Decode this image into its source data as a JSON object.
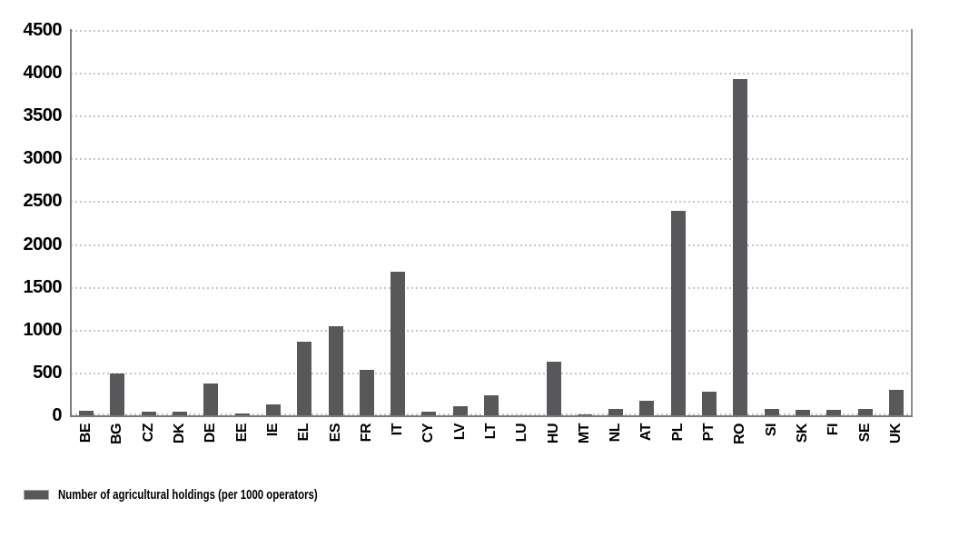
{
  "chart_data": {
    "type": "bar",
    "title": "",
    "categories": [
      "BE",
      "BG",
      "CZ",
      "DK",
      "DE",
      "EE",
      "IE",
      "EL",
      "ES",
      "FR",
      "IT",
      "CY",
      "LV",
      "LT",
      "LU",
      "HU",
      "MT",
      "NL",
      "AT",
      "PL",
      "PT",
      "RO",
      "SI",
      "SK",
      "FI",
      "SE",
      "UK"
    ],
    "values": [
      48,
      493,
      39,
      45,
      371,
      23,
      128,
      860,
      1044,
      527,
      1679,
      40,
      108,
      230,
      2,
      626,
      11,
      77,
      165,
      2391,
      275,
      3931,
      75,
      69,
      68,
      73,
      300
    ],
    "series_name": "Number of agricultural holdings (per 1000 operators)",
    "ylim": [
      0,
      4500
    ],
    "y_ticks": [
      4500,
      4000,
      3500,
      3000,
      2500,
      2000,
      1500,
      1000,
      500,
      0
    ],
    "grid": "horizontal-dotted",
    "legend_position": "bottom-left",
    "bar_color": "#58585a"
  },
  "legend": {
    "label": "Number of agricultural holdings (per 1000 operators)",
    "swatch_color": "#58585a"
  },
  "colors": {
    "bar": "#58585a",
    "gridline": "#c6c6c6",
    "axis": "#7b7b7b",
    "text": "#000000",
    "background": "#ffffff"
  }
}
